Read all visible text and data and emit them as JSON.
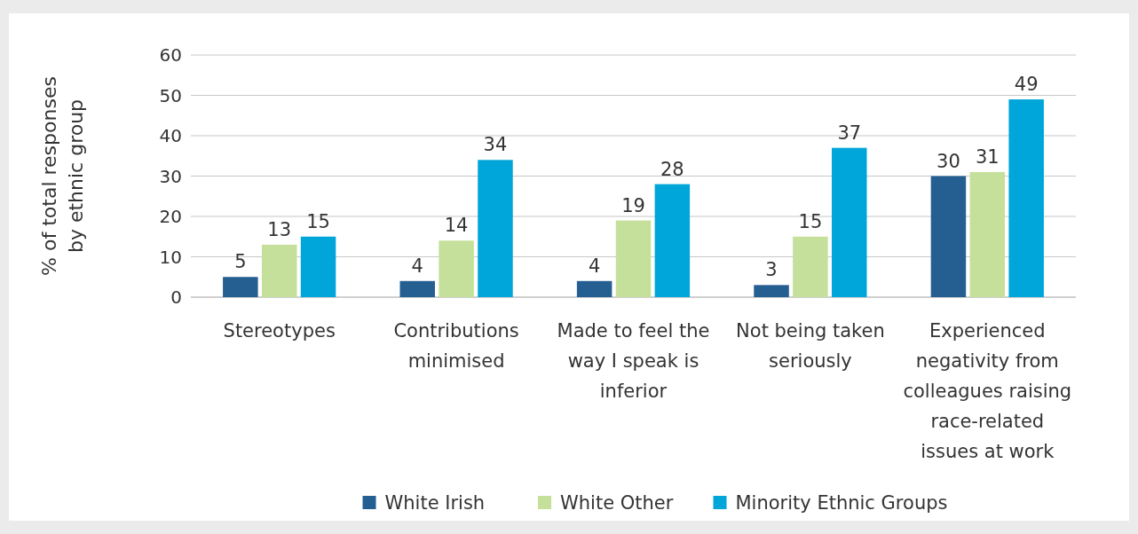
{
  "chart_data": {
    "type": "bar",
    "ylabel": "% of total responses by ethnic group",
    "categories": [
      "Stereotypes",
      "Contributions minimised",
      "Made to feel the way I speak is inferior",
      "Not being taken seriously",
      "Experienced negativity from colleagues raising race-related issues at work"
    ],
    "series": [
      {
        "name": "White Irish",
        "color": "#255e91",
        "values": [
          5,
          4,
          4,
          3,
          30
        ]
      },
      {
        "name": "White Other",
        "color": "#c5e09b",
        "values": [
          13,
          14,
          19,
          15,
          31
        ]
      },
      {
        "name": "Minority Ethnic Groups",
        "color": "#00a6d9",
        "values": [
          15,
          34,
          28,
          37,
          49
        ]
      }
    ],
    "ylim": [
      0,
      60
    ],
    "yticks": [
      0,
      10,
      20,
      30,
      40,
      50,
      60
    ],
    "grid": "y",
    "legend": "bottom",
    "data_labels": true
  }
}
